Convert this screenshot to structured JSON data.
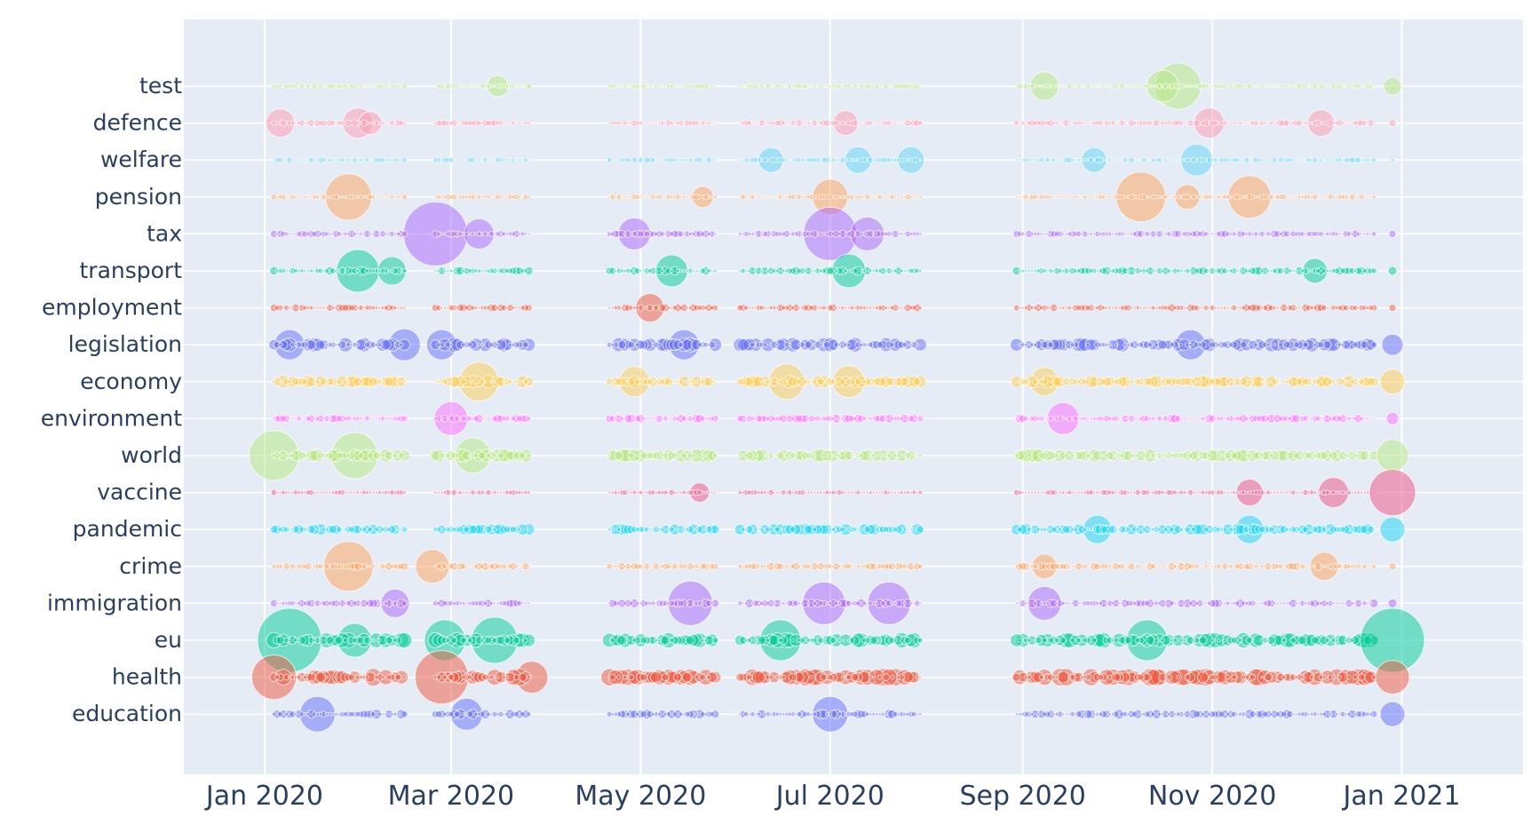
{
  "chart_data": {
    "type": "scatter",
    "subtype": "bubble-timeline",
    "title": "",
    "xlabel": "",
    "ylabel": "",
    "x_range": [
      "2019-12-06",
      "2021-02-09"
    ],
    "x_ticks": [
      {
        "date": "2020-01-01",
        "label": "Jan 2020"
      },
      {
        "date": "2020-03-01",
        "label": "Mar 2020"
      },
      {
        "date": "2020-05-01",
        "label": "May 2020"
      },
      {
        "date": "2020-07-01",
        "label": "Jul 2020"
      },
      {
        "date": "2020-09-01",
        "label": "Sep 2020"
      },
      {
        "date": "2020-11-01",
        "label": "Nov 2020"
      },
      {
        "date": "2021-01-01",
        "label": "Jan 2021"
      }
    ],
    "categories": [
      "test",
      "defence",
      "welfare",
      "pension",
      "tax",
      "transport",
      "employment",
      "legislation",
      "economy",
      "environment",
      "world",
      "vaccine",
      "pandemic",
      "crime",
      "immigration",
      "eu",
      "health",
      "education"
    ],
    "colors": {
      "test": "#b6e880",
      "defence": "#ff97b0",
      "welfare": "#5ed4f5",
      "pension": "#ffa15a",
      "tax": "#ab63fa",
      "transport": "#00cc96",
      "employment": "#ef553b",
      "legislation": "#636efa",
      "economy": "#fecb52",
      "environment": "#ff6aff",
      "world": "#b6e880",
      "vaccine": "#ef4f7f",
      "pandemic": "#19d3f3",
      "crime": "#ffa15a",
      "immigration": "#ab63fa",
      "eu": "#00cc96",
      "health": "#ef553b",
      "education": "#636efa"
    },
    "date_windows": [
      [
        "2020-01-04",
        "2020-02-15"
      ],
      [
        "2020-02-25",
        "2020-03-26"
      ],
      [
        "2020-04-21",
        "2020-05-25"
      ],
      [
        "2020-06-02",
        "2020-07-30"
      ],
      [
        "2020-08-30",
        "2020-12-23"
      ]
    ],
    "final_date": "2020-12-29",
    "series": [
      {
        "name": "test",
        "level": 0.3,
        "peaks": [
          [
            "2020-03-16",
            12
          ],
          [
            "2020-09-08",
            16
          ],
          [
            "2020-10-21",
            26
          ],
          [
            "2020-10-16",
            18
          ],
          [
            "2020-12-29",
            10
          ]
        ]
      },
      {
        "name": "defence",
        "level": 0.35,
        "peaks": [
          [
            "2020-01-06",
            16
          ],
          [
            "2020-01-31",
            17
          ],
          [
            "2020-02-04",
            13
          ],
          [
            "2020-07-06",
            14
          ],
          [
            "2020-10-31",
            17
          ],
          [
            "2020-12-06",
            15
          ],
          [
            "2020-12-29",
            4
          ]
        ]
      },
      {
        "name": "welfare",
        "level": 0.3,
        "peaks": [
          [
            "2020-06-12",
            14
          ],
          [
            "2020-07-10",
            15
          ],
          [
            "2020-07-27",
            15
          ],
          [
            "2020-09-24",
            14
          ],
          [
            "2020-10-27",
            18
          ],
          [
            "2020-12-29",
            2
          ]
        ]
      },
      {
        "name": "pension",
        "level": 0.3,
        "peaks": [
          [
            "2020-01-28",
            26
          ],
          [
            "2020-05-21",
            12
          ],
          [
            "2020-07-01",
            20
          ],
          [
            "2020-10-09",
            28
          ],
          [
            "2020-10-24",
            14
          ],
          [
            "2020-11-13",
            24
          ]
        ]
      },
      {
        "name": "tax",
        "level": 0.38,
        "peaks": [
          [
            "2020-02-25",
            36
          ],
          [
            "2020-03-10",
            17
          ],
          [
            "2020-04-29",
            18
          ],
          [
            "2020-07-01",
            30
          ],
          [
            "2020-07-13",
            19
          ],
          [
            "2020-12-29",
            4
          ]
        ]
      },
      {
        "name": "transport",
        "level": 0.45,
        "peaks": [
          [
            "2020-01-31",
            24
          ],
          [
            "2020-02-11",
            16
          ],
          [
            "2020-05-11",
            18
          ],
          [
            "2020-07-07",
            19
          ],
          [
            "2020-12-04",
            14
          ],
          [
            "2020-12-29",
            5
          ]
        ]
      },
      {
        "name": "employment",
        "level": 0.4,
        "peaks": [
          [
            "2020-05-04",
            16
          ],
          [
            "2020-12-29",
            4
          ]
        ]
      },
      {
        "name": "legislation",
        "level": 0.75,
        "peaks": [
          [
            "2020-01-09",
            17
          ],
          [
            "2020-02-15",
            18
          ],
          [
            "2020-02-27",
            17
          ],
          [
            "2020-05-15",
            17
          ],
          [
            "2020-10-25",
            17
          ],
          [
            "2020-12-29",
            12
          ]
        ]
      },
      {
        "name": "economy",
        "level": 0.65,
        "peaks": [
          [
            "2020-03-10",
            22
          ],
          [
            "2020-04-29",
            17
          ],
          [
            "2020-06-17",
            20
          ],
          [
            "2020-07-07",
            18
          ],
          [
            "2020-09-08",
            16
          ],
          [
            "2020-12-29",
            14
          ]
        ]
      },
      {
        "name": "environment",
        "level": 0.45,
        "peaks": [
          [
            "2020-03-01",
            19
          ],
          [
            "2020-09-14",
            18
          ],
          [
            "2020-12-29",
            7
          ]
        ]
      },
      {
        "name": "world",
        "level": 0.7,
        "peaks": [
          [
            "2020-01-04",
            28
          ],
          [
            "2020-01-30",
            26
          ],
          [
            "2020-03-08",
            20
          ],
          [
            "2020-12-29",
            18
          ]
        ]
      },
      {
        "name": "vaccine",
        "level": 0.3,
        "peaks": [
          [
            "2020-05-20",
            11
          ],
          [
            "2020-11-13",
            15
          ],
          [
            "2020-12-10",
            17
          ],
          [
            "2020-12-29",
            26
          ]
        ]
      },
      {
        "name": "pandemic",
        "level": 0.6,
        "peaks": [
          [
            "2020-09-25",
            16
          ],
          [
            "2020-11-13",
            16
          ],
          [
            "2020-12-29",
            14
          ]
        ]
      },
      {
        "name": "crime",
        "level": 0.4,
        "peaks": [
          [
            "2020-01-28",
            28
          ],
          [
            "2020-02-24",
            19
          ],
          [
            "2020-09-08",
            14
          ],
          [
            "2020-12-07",
            16
          ],
          [
            "2020-12-29",
            4
          ]
        ]
      },
      {
        "name": "immigration",
        "level": 0.45,
        "peaks": [
          [
            "2020-02-12",
            16
          ],
          [
            "2020-05-17",
            25
          ],
          [
            "2020-06-29",
            24
          ],
          [
            "2020-07-20",
            24
          ],
          [
            "2020-09-08",
            19
          ],
          [
            "2020-12-29",
            5
          ]
        ]
      },
      {
        "name": "eu",
        "level": 0.8,
        "peaks": [
          [
            "2020-01-09",
            36
          ],
          [
            "2020-01-30",
            19
          ],
          [
            "2020-02-28",
            23
          ],
          [
            "2020-03-15",
            26
          ],
          [
            "2020-06-15",
            23
          ],
          [
            "2020-10-11",
            23
          ],
          [
            "2020-12-29",
            36
          ]
        ]
      },
      {
        "name": "health",
        "level": 0.9,
        "peaks": [
          [
            "2020-01-04",
            25
          ],
          [
            "2020-02-27",
            30
          ],
          [
            "2020-03-27",
            18
          ],
          [
            "2020-12-29",
            19
          ]
        ]
      },
      {
        "name": "education",
        "level": 0.5,
        "peaks": [
          [
            "2020-01-18",
            20
          ],
          [
            "2020-03-06",
            18
          ],
          [
            "2020-07-01",
            20
          ],
          [
            "2020-12-29",
            14
          ]
        ]
      }
    ],
    "grid": true,
    "legend": "none"
  }
}
